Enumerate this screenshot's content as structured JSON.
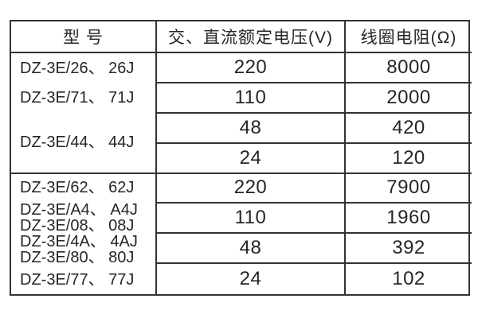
{
  "colors": {
    "border": "#333333",
    "text": "#262626",
    "background": "#ffffff"
  },
  "table": {
    "headers": [
      "型 号",
      "交、直流额定电压(V)",
      "线圈电阻(Ω)"
    ],
    "sections": [
      {
        "models": [
          "DZ-3E/26、 26J",
          "DZ-3E/71、 71J",
          "DZ-3E/44、 44J"
        ],
        "rows": [
          {
            "voltage": "220",
            "resistance": "8000"
          },
          {
            "voltage": "110",
            "resistance": "2000"
          },
          {
            "voltage": "48",
            "resistance": "420"
          },
          {
            "voltage": "24",
            "resistance": "120"
          }
        ]
      },
      {
        "models": [
          "DZ-3E/62、 62J",
          "DZ-3E/A4、 A4J",
          "DZ-3E/08、 08J",
          "DZ-3E/4A、 4AJ",
          "DZ-3E/80、 80J",
          "DZ-3E/77、 77J"
        ],
        "rows": [
          {
            "voltage": "220",
            "resistance": "7900"
          },
          {
            "voltage": "110",
            "resistance": "1960"
          },
          {
            "voltage": "48",
            "resistance": "392"
          },
          {
            "voltage": "24",
            "resistance": "102"
          }
        ]
      }
    ]
  }
}
